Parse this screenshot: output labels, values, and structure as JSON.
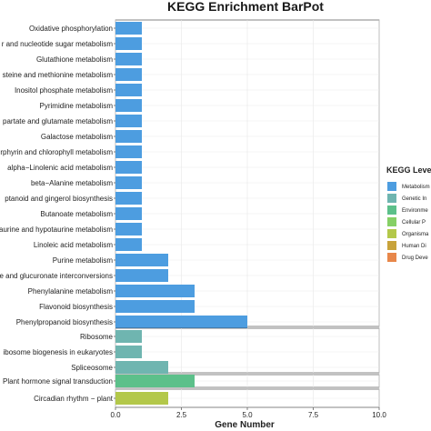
{
  "chart_data": {
    "type": "bar",
    "orientation": "horizontal",
    "title": "KEGG Enrichment BarPot",
    "xlabel": "Gene Number",
    "ylabel": "",
    "xlim": [
      0,
      10
    ],
    "xticks": [
      "0.0",
      "2.5",
      "5.0",
      "7.5",
      "10.0"
    ],
    "grid": true,
    "legend": {
      "title": "KEGG Level",
      "position": "right",
      "entries": [
        {
          "label": "Metabolism",
          "color": "#4d9de0"
        },
        {
          "label": "Genetic In",
          "color": "#6fb5b0"
        },
        {
          "label": "Environme",
          "color": "#5cc08a"
        },
        {
          "label": "Cellular P",
          "color": "#86d066"
        },
        {
          "label": "Organisma",
          "color": "#b3c84a"
        },
        {
          "label": "Human Di",
          "color": "#c8a33b"
        },
        {
          "label": "Drug Deve",
          "color": "#e8874a"
        }
      ]
    },
    "groups": [
      {
        "name": "Metabolism",
        "color": "#4d9de0",
        "items": [
          {
            "label": "Oxidative phosphorylation",
            "value": 1
          },
          {
            "label": "r and nucleotide sugar metabolism",
            "value": 1
          },
          {
            "label": "Glutathione metabolism",
            "value": 1
          },
          {
            "label": "steine and methionine metabolism",
            "value": 1
          },
          {
            "label": "Inositol phosphate metabolism",
            "value": 1
          },
          {
            "label": "Pyrimidine metabolism",
            "value": 1
          },
          {
            "label": "partate and glutamate metabolism",
            "value": 1
          },
          {
            "label": "Galactose metabolism",
            "value": 1
          },
          {
            "label": "rphyrin and chlorophyll metabolism",
            "value": 1
          },
          {
            "label": "alpha−Linolenic acid metabolism",
            "value": 1
          },
          {
            "label": "beta−Alanine metabolism",
            "value": 1
          },
          {
            "label": "ptanoid and gingerol biosynthesis",
            "value": 1
          },
          {
            "label": "Butanoate metabolism",
            "value": 1
          },
          {
            "label": "aurine and hypotaurine metabolism",
            "value": 1
          },
          {
            "label": "Linoleic acid metabolism",
            "value": 1
          },
          {
            "label": "Purine metabolism",
            "value": 2
          },
          {
            "label": "e and glucuronate interconversions",
            "value": 2
          },
          {
            "label": "Phenylalanine metabolism",
            "value": 3
          },
          {
            "label": "Flavonoid biosynthesis",
            "value": 3
          },
          {
            "label": "Phenylpropanoid biosynthesis",
            "value": 5
          }
        ]
      },
      {
        "name": "Genetic Information Processing",
        "color": "#6fb5b0",
        "items": [
          {
            "label": "Ribosome",
            "value": 1
          },
          {
            "label": "ibosome biogenesis in eukaryotes",
            "value": 1
          },
          {
            "label": "Spliceosome",
            "value": 2
          }
        ]
      },
      {
        "name": "Environmental Information Processing",
        "color": "#5cc08a",
        "items": [
          {
            "label": "Plant hormone signal transduction",
            "value": 3
          }
        ]
      },
      {
        "name": "Organismal Systems",
        "color": "#b3c84a",
        "items": [
          {
            "label": "Circadian rhythm − plant",
            "value": 2
          }
        ]
      }
    ]
  }
}
